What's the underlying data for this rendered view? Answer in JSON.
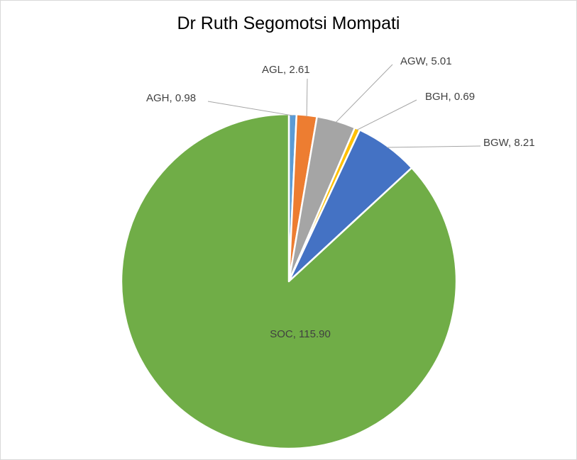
{
  "chart_data": {
    "type": "pie",
    "title": "Dr Ruth Segomotsi Mompati",
    "slices": [
      {
        "label": "AGH",
        "value": 0.98,
        "display": "AGH, 0.98",
        "color": "#5b9bd5"
      },
      {
        "label": "AGL",
        "value": 2.61,
        "display": "AGL, 2.61",
        "color": "#ed7d31"
      },
      {
        "label": "AGW",
        "value": 5.01,
        "display": "AGW, 5.01",
        "color": "#a5a5a5"
      },
      {
        "label": "BGH",
        "value": 0.69,
        "display": "BGH, 0.69",
        "color": "#ffc000"
      },
      {
        "label": "BGW",
        "value": 8.21,
        "display": "BGW, 8.21",
        "color": "#4472c4"
      },
      {
        "label": "SOC",
        "value": 115.9,
        "display": "SOC, 115.90",
        "color": "#70ad47"
      }
    ]
  }
}
